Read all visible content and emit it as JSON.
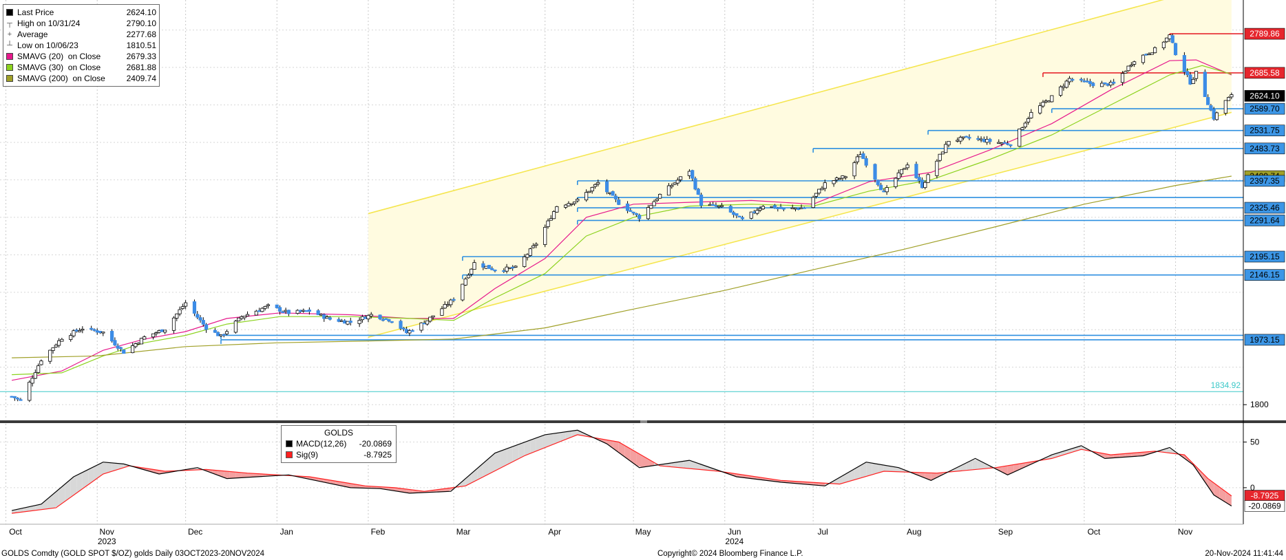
{
  "legend": {
    "items": [
      {
        "label": "Last Price",
        "value": "2624.10",
        "color": "#000000",
        "glyph": ""
      },
      {
        "label": "High on 10/31/24",
        "value": "2790.10",
        "color": "",
        "glyph": "┬"
      },
      {
        "label": "Average",
        "value": "2277.68",
        "color": "",
        "glyph": "+"
      },
      {
        "label": "Low on 10/06/23",
        "value": "1810.51",
        "color": "",
        "glyph": "┴"
      },
      {
        "label": "SMAVG (20)  on Close",
        "value": "2679.33",
        "color": "#e6198c",
        "glyph": ""
      },
      {
        "label": "SMAVG (30)  on Close",
        "value": "2681.88",
        "color": "#8cd21e",
        "glyph": ""
      },
      {
        "label": "SMAVG (200)  on Close",
        "value": "2409.74",
        "color": "#a0a028",
        "glyph": ""
      }
    ]
  },
  "macd_legend": {
    "title": "GOLDS",
    "items": [
      {
        "label": "MACD(12,26)",
        "value": "-20.0869",
        "color": "#000000"
      },
      {
        "label": "Sig(9)",
        "value": "-8.7925",
        "color": "#ff2020"
      }
    ]
  },
  "footer": {
    "left": "GOLDS Comdty (GOLD SPOT $/OZ) golds  Daily 03OCT2023-20NOV2024",
    "center": "Copyright© 2024 Bloomberg Finance L.P.",
    "right": "20-Nov-2024 11:41:44"
  },
  "colors": {
    "up": "#ffffff",
    "down": "#3c8ce6",
    "sma20": "#e6198c",
    "sma30": "#8cd21e",
    "sma200": "#a0a028",
    "channel": "#f5e650",
    "channel_fill": "#fffbe0",
    "support": "#2d8fe0",
    "resistance": "#e6262d",
    "macd": "#000000",
    "signal": "#ff2020",
    "hist_up": "#d8d8d8",
    "hist_down": "#f4a0a0",
    "low_line": "#3cc8c8"
  },
  "chart_data": [
    {
      "type": "candlestick",
      "title": "GOLDS Comdty (GOLD SPOT $/OZ)",
      "x_tick_labels": [
        "Oct",
        "Nov",
        "Dec",
        "Jan",
        "Feb",
        "Mar",
        "Apr",
        "May",
        "Jun",
        "Jul",
        "Aug",
        "Sep",
        "Oct",
        "Nov"
      ],
      "x_tick_dates": [
        "2023-10-01",
        "2023-11-01",
        "2023-12-01",
        "2024-01-01",
        "2024-02-01",
        "2024-03-01",
        "2024-04-01",
        "2024-05-01",
        "2024-06-01",
        "2024-07-01",
        "2024-08-01",
        "2024-09-01",
        "2024-10-01",
        "2024-11-01"
      ],
      "year_labels": [
        {
          "text": "2023",
          "date": "2023-11-01"
        },
        {
          "text": "2024",
          "date": "2024-06-01"
        }
      ],
      "y_tick_labels": [
        "1800"
      ],
      "ylim": [
        1760,
        2880
      ],
      "price_points": [
        [
          "2023-10-03",
          1822
        ],
        [
          "2023-10-06",
          1812
        ],
        [
          "2023-10-13",
          1920
        ],
        [
          "2023-10-20",
          1978
        ],
        [
          "2023-10-27",
          2004
        ],
        [
          "2023-11-03",
          1993
        ],
        [
          "2023-11-10",
          1940
        ],
        [
          "2023-11-17",
          1980
        ],
        [
          "2023-11-24",
          2002
        ],
        [
          "2023-12-01",
          2072
        ],
        [
          "2023-12-08",
          2005
        ],
        [
          "2023-12-13",
          1982
        ],
        [
          "2023-12-20",
          2035
        ],
        [
          "2023-12-29",
          2063
        ],
        [
          "2024-01-05",
          2045
        ],
        [
          "2024-01-12",
          2050
        ],
        [
          "2024-01-19",
          2028
        ],
        [
          "2024-01-26",
          2020
        ],
        [
          "2024-02-02",
          2040
        ],
        [
          "2024-02-09",
          2025
        ],
        [
          "2024-02-14",
          1992
        ],
        [
          "2024-02-21",
          2025
        ],
        [
          "2024-03-01",
          2082
        ],
        [
          "2024-03-08",
          2178
        ],
        [
          "2024-03-15",
          2160
        ],
        [
          "2024-03-22",
          2165
        ],
        [
          "2024-03-29",
          2230
        ],
        [
          "2024-04-05",
          2330
        ],
        [
          "2024-04-12",
          2345
        ],
        [
          "2024-04-19",
          2392
        ],
        [
          "2024-04-26",
          2338
        ],
        [
          "2024-05-03",
          2300
        ],
        [
          "2024-05-10",
          2360
        ],
        [
          "2024-05-20",
          2425
        ],
        [
          "2024-05-24",
          2335
        ],
        [
          "2024-05-31",
          2327
        ],
        [
          "2024-06-07",
          2293
        ],
        [
          "2024-06-14",
          2332
        ],
        [
          "2024-06-21",
          2322
        ],
        [
          "2024-06-28",
          2326
        ],
        [
          "2024-07-05",
          2390
        ],
        [
          "2024-07-12",
          2410
        ],
        [
          "2024-07-17",
          2470
        ],
        [
          "2024-07-25",
          2365
        ],
        [
          "2024-08-02",
          2443
        ],
        [
          "2024-08-07",
          2383
        ],
        [
          "2024-08-16",
          2505
        ],
        [
          "2024-08-23",
          2512
        ],
        [
          "2024-08-30",
          2503
        ],
        [
          "2024-09-06",
          2496
        ],
        [
          "2024-09-13",
          2578
        ],
        [
          "2024-09-20",
          2621
        ],
        [
          "2024-09-26",
          2670
        ],
        [
          "2024-10-04",
          2655
        ],
        [
          "2024-10-11",
          2656
        ],
        [
          "2024-10-18",
          2720
        ],
        [
          "2024-10-25",
          2748
        ],
        [
          "2024-10-30",
          2785
        ],
        [
          "2024-11-01",
          2738
        ],
        [
          "2024-11-06",
          2660
        ],
        [
          "2024-11-08",
          2685
        ],
        [
          "2024-11-14",
          2565
        ],
        [
          "2024-11-18",
          2612
        ],
        [
          "2024-11-20",
          2624
        ]
      ],
      "sma_series": [
        {
          "name": "SMAVG (20)  on Close",
          "points": [
            [
              "2023-10-03",
              1865
            ],
            [
              "2023-10-20",
              1890
            ],
            [
              "2023-11-03",
              1945
            ],
            [
              "2023-11-17",
              1975
            ],
            [
              "2023-12-01",
              1995
            ],
            [
              "2023-12-15",
              2030
            ],
            [
              "2024-01-02",
              2045
            ],
            [
              "2024-01-26",
              2040
            ],
            [
              "2024-02-15",
              2030
            ],
            [
              "2024-03-01",
              2030
            ],
            [
              "2024-03-15",
              2110
            ],
            [
              "2024-04-01",
              2190
            ],
            [
              "2024-04-15",
              2300
            ],
            [
              "2024-05-01",
              2335
            ],
            [
              "2024-05-20",
              2340
            ],
            [
              "2024-06-10",
              2345
            ],
            [
              "2024-07-01",
              2335
            ],
            [
              "2024-07-20",
              2395
            ],
            [
              "2024-08-10",
              2420
            ],
            [
              "2024-08-30",
              2480
            ],
            [
              "2024-09-20",
              2550
            ],
            [
              "2024-10-10",
              2640
            ],
            [
              "2024-10-30",
              2718
            ],
            [
              "2024-11-08",
              2720
            ],
            [
              "2024-11-20",
              2680
            ]
          ]
        },
        {
          "name": "SMAVG (30)  on Close",
          "points": [
            [
              "2023-10-03",
              1880
            ],
            [
              "2023-10-20",
              1885
            ],
            [
              "2023-11-03",
              1930
            ],
            [
              "2023-11-17",
              1965
            ],
            [
              "2023-12-01",
              1985
            ],
            [
              "2023-12-15",
              2015
            ],
            [
              "2024-01-02",
              2035
            ],
            [
              "2024-01-26",
              2035
            ],
            [
              "2024-02-15",
              2030
            ],
            [
              "2024-03-01",
              2025
            ],
            [
              "2024-03-15",
              2085
            ],
            [
              "2024-04-01",
              2150
            ],
            [
              "2024-04-15",
              2250
            ],
            [
              "2024-05-01",
              2300
            ],
            [
              "2024-05-20",
              2330
            ],
            [
              "2024-06-10",
              2335
            ],
            [
              "2024-07-01",
              2330
            ],
            [
              "2024-07-20",
              2370
            ],
            [
              "2024-08-10",
              2400
            ],
            [
              "2024-08-30",
              2455
            ],
            [
              "2024-09-20",
              2520
            ],
            [
              "2024-10-10",
              2600
            ],
            [
              "2024-10-30",
              2680
            ],
            [
              "2024-11-10",
              2705
            ],
            [
              "2024-11-20",
              2682
            ]
          ]
        },
        {
          "name": "SMAVG (200)  on Close",
          "points": [
            [
              "2023-10-03",
              1925
            ],
            [
              "2023-11-01",
              1930
            ],
            [
              "2023-12-01",
              1955
            ],
            [
              "2024-01-01",
              1965
            ],
            [
              "2024-02-01",
              1970
            ],
            [
              "2024-03-01",
              1975
            ],
            [
              "2024-04-01",
              2005
            ],
            [
              "2024-05-01",
              2055
            ],
            [
              "2024-06-01",
              2105
            ],
            [
              "2024-07-01",
              2160
            ],
            [
              "2024-08-01",
              2215
            ],
            [
              "2024-09-01",
              2275
            ],
            [
              "2024-10-01",
              2335
            ],
            [
              "2024-11-01",
              2385
            ],
            [
              "2024-11-20",
              2410
            ]
          ]
        }
      ],
      "trend_channel": {
        "start": "2024-02-01",
        "end": "2024-11-20",
        "lower": [
          1980,
          2580
        ],
        "upper": [
          2310,
          2930
        ]
      },
      "level_lines": [
        {
          "label": "2789.86",
          "value": 2789.86,
          "start": "2024-10-30",
          "color": "#e6262d"
        },
        {
          "label": "2685.58",
          "value": 2685.58,
          "start": "2024-09-17",
          "color": "#e6262d"
        },
        {
          "label": "2589.70",
          "value": 2589.7,
          "start": "2024-09-20",
          "color": "#2d8fe0"
        },
        {
          "label": "2531.75",
          "value": 2531.75,
          "start": "2024-08-09",
          "color": "#2d8fe0"
        },
        {
          "label": "2483.73",
          "value": 2483.73,
          "start": "2024-07-01",
          "color": "#2d8fe0"
        },
        {
          "label": "2397.35",
          "value": 2397.35,
          "start": "2024-04-12",
          "color": "#2d8fe0"
        },
        {
          "label": "",
          "value": 2353.0,
          "start": "2024-04-12",
          "color": "#2d8fe0"
        },
        {
          "label": "2325.46",
          "value": 2325.46,
          "start": "2024-04-12",
          "color": "#2d8fe0"
        },
        {
          "label": "2291.64",
          "value": 2291.64,
          "start": "2024-04-12",
          "color": "#2d8fe0"
        },
        {
          "label": "2195.15",
          "value": 2195.15,
          "start": "2024-03-04",
          "color": "#2d8fe0"
        },
        {
          "label": "2146.15",
          "value": 2146.15,
          "start": "2024-03-04",
          "color": "#2d8fe0"
        },
        {
          "label": "",
          "value": 1985.0,
          "start": "2023-12-13",
          "color": "#2d8fe0"
        },
        {
          "label": "1973.15",
          "value": 1973.15,
          "start": "2023-12-13",
          "color": "#2d8fe0"
        }
      ],
      "last_price_tag": {
        "label": "2624.10",
        "value": 2624.1
      },
      "sma200_tag": {
        "label": "2409.74",
        "value": 2409.74
      },
      "low_line": {
        "label": "1834.92",
        "value": 1834.92
      }
    },
    {
      "type": "line",
      "title": "GOLDS",
      "y_tick_labels": [
        "50",
        "0"
      ],
      "ylim": [
        -40,
        70
      ],
      "series": [
        {
          "name": "MACD(12,26)",
          "points": [
            [
              "2023-10-03",
              -25
            ],
            [
              "2023-10-13",
              -18
            ],
            [
              "2023-10-24",
              12
            ],
            [
              "2023-11-03",
              28
            ],
            [
              "2023-11-10",
              26
            ],
            [
              "2023-11-22",
              15
            ],
            [
              "2023-12-05",
              22
            ],
            [
              "2023-12-15",
              10
            ],
            [
              "2024-01-05",
              14
            ],
            [
              "2024-01-26",
              0
            ],
            [
              "2024-02-05",
              -1
            ],
            [
              "2024-02-15",
              -6
            ],
            [
              "2024-02-29",
              -4
            ],
            [
              "2024-03-15",
              38
            ],
            [
              "2024-04-01",
              58
            ],
            [
              "2024-04-12",
              63
            ],
            [
              "2024-04-22",
              48
            ],
            [
              "2024-05-03",
              22
            ],
            [
              "2024-05-20",
              30
            ],
            [
              "2024-06-05",
              12
            ],
            [
              "2024-06-20",
              6
            ],
            [
              "2024-07-05",
              2
            ],
            [
              "2024-07-19",
              28
            ],
            [
              "2024-07-30",
              22
            ],
            [
              "2024-08-10",
              8
            ],
            [
              "2024-08-25",
              32
            ],
            [
              "2024-09-05",
              14
            ],
            [
              "2024-09-20",
              36
            ],
            [
              "2024-09-30",
              46
            ],
            [
              "2024-10-08",
              32
            ],
            [
              "2024-10-21",
              35
            ],
            [
              "2024-10-30",
              44
            ],
            [
              "2024-11-07",
              25
            ],
            [
              "2024-11-14",
              -8
            ],
            [
              "2024-11-20",
              -20
            ]
          ]
        },
        {
          "name": "Sig(9)",
          "points": [
            [
              "2023-10-03",
              -28
            ],
            [
              "2023-10-18",
              -22
            ],
            [
              "2023-11-03",
              15
            ],
            [
              "2023-11-12",
              24
            ],
            [
              "2023-11-24",
              18
            ],
            [
              "2023-12-08",
              20
            ],
            [
              "2023-12-22",
              16
            ],
            [
              "2024-01-12",
              12
            ],
            [
              "2024-01-31",
              2
            ],
            [
              "2024-02-10",
              0
            ],
            [
              "2024-02-20",
              -4
            ],
            [
              "2024-03-05",
              2
            ],
            [
              "2024-03-25",
              35
            ],
            [
              "2024-04-12",
              58
            ],
            [
              "2024-04-26",
              50
            ],
            [
              "2024-05-10",
              24
            ],
            [
              "2024-05-30",
              18
            ],
            [
              "2024-06-20",
              8
            ],
            [
              "2024-07-10",
              4
            ],
            [
              "2024-07-25",
              18
            ],
            [
              "2024-08-12",
              16
            ],
            [
              "2024-09-01",
              22
            ],
            [
              "2024-09-20",
              32
            ],
            [
              "2024-09-30",
              42
            ],
            [
              "2024-10-10",
              36
            ],
            [
              "2024-10-25",
              40
            ],
            [
              "2024-11-04",
              36
            ],
            [
              "2024-11-12",
              10
            ],
            [
              "2024-11-20",
              -9
            ]
          ]
        }
      ],
      "value_tags": [
        {
          "label": "-8.7925",
          "value": -8.7925,
          "color": "#e6262d"
        },
        {
          "label": "-20.0869",
          "value": -20.0869,
          "color": "#ffffff"
        }
      ]
    }
  ]
}
